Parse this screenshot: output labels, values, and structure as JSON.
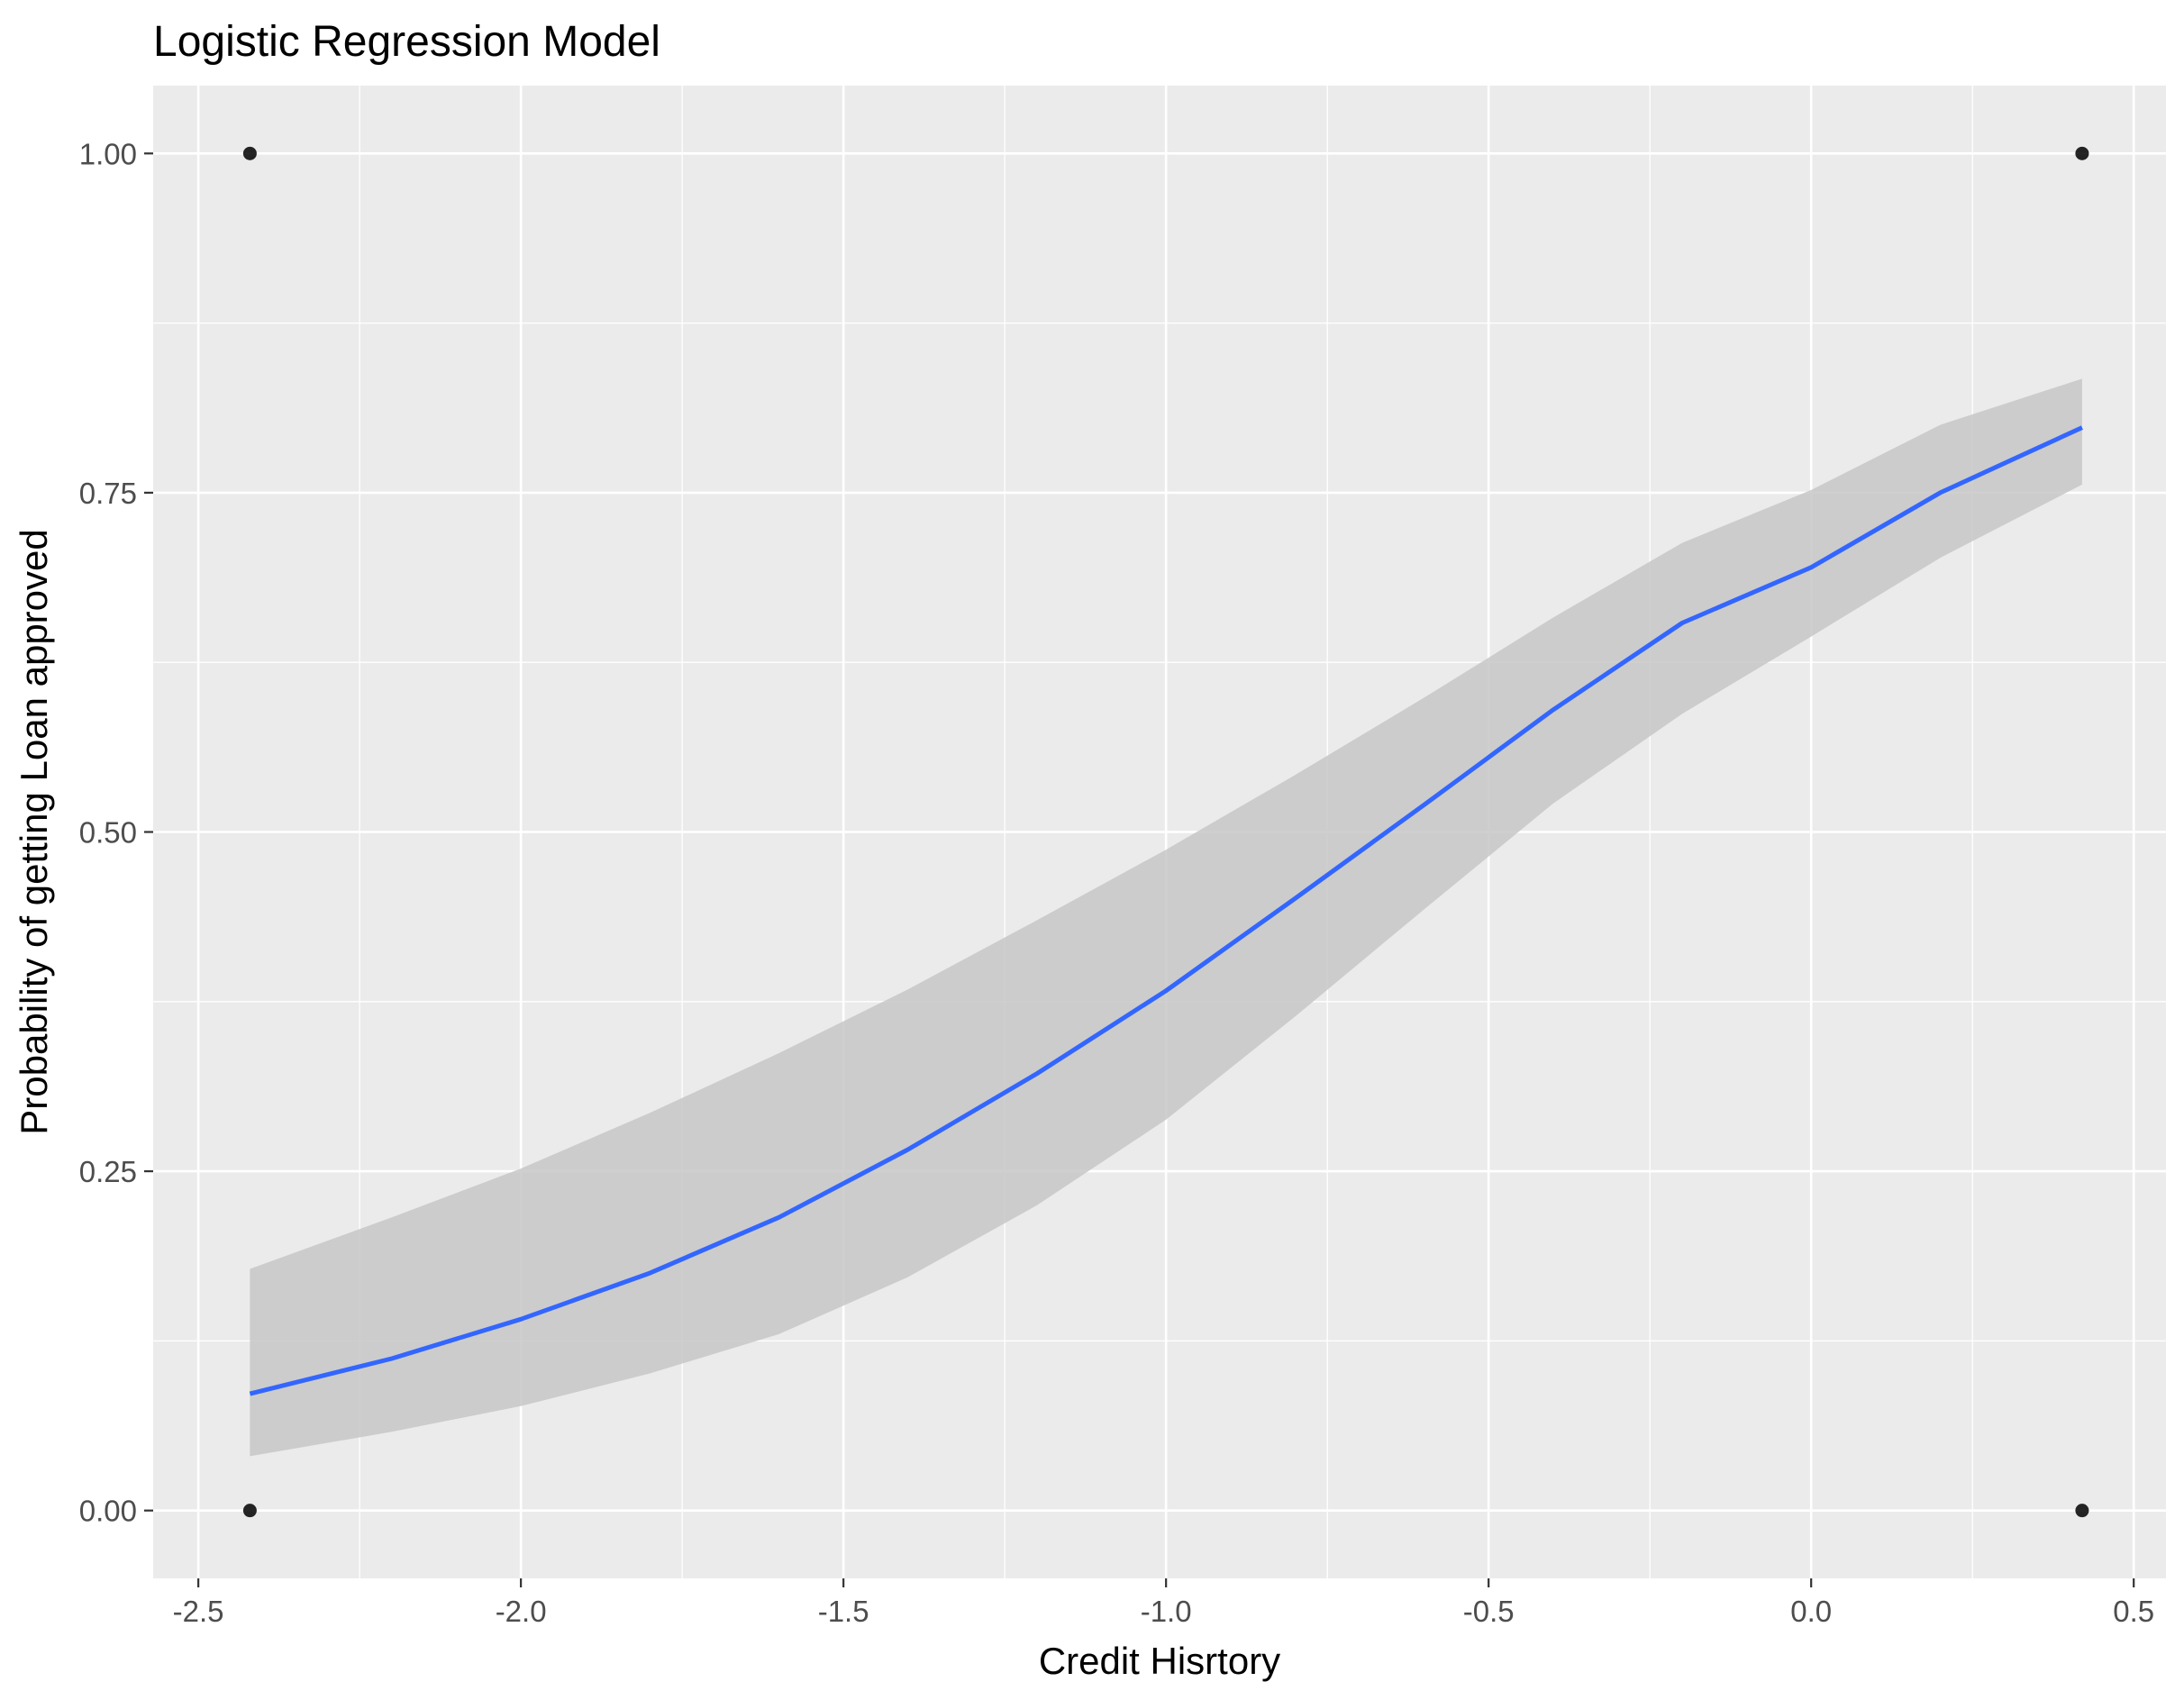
{
  "chart_data": {
    "type": "scatter",
    "title": "Logistic Regression Model",
    "xlabel": "Credit Hisrtory",
    "ylabel": "Probability of getting Loan approved",
    "xlim": [
      -2.57,
      0.55
    ],
    "ylim": [
      -0.05,
      1.05
    ],
    "x_ticks": [
      {
        "value": -2.5,
        "label": "-2.5"
      },
      {
        "value": -2.0,
        "label": "-2.0"
      },
      {
        "value": -1.5,
        "label": "-1.5"
      },
      {
        "value": -1.0,
        "label": "-1.0"
      },
      {
        "value": -0.5,
        "label": "-0.5"
      },
      {
        "value": 0.0,
        "label": "0.0"
      },
      {
        "value": 0.5,
        "label": "0.5"
      }
    ],
    "y_ticks": [
      {
        "value": 0.0,
        "label": "0.00"
      },
      {
        "value": 0.25,
        "label": "0.25"
      },
      {
        "value": 0.5,
        "label": "0.50"
      },
      {
        "value": 0.75,
        "label": "0.75"
      },
      {
        "value": 1.0,
        "label": "1.00"
      }
    ],
    "grid": true,
    "points": [
      {
        "x": -2.42,
        "y": 1.0
      },
      {
        "x": -2.42,
        "y": 0.0
      },
      {
        "x": 0.42,
        "y": 1.0
      },
      {
        "x": 0.42,
        "y": 0.0
      }
    ],
    "fit_line": {
      "x": [
        -2.42,
        -2.2,
        -2.0,
        -1.8,
        -1.6,
        -1.4,
        -1.2,
        -1.0,
        -0.8,
        -0.6,
        -0.4,
        -0.2,
        0.0,
        0.2,
        0.42
      ],
      "y": [
        0.086,
        0.112,
        0.141,
        0.175,
        0.216,
        0.266,
        0.322,
        0.383,
        0.451,
        0.52,
        0.59,
        0.654,
        0.695,
        0.75,
        0.798
      ],
      "lower": [
        0.04,
        0.058,
        0.077,
        0.101,
        0.13,
        0.172,
        0.225,
        0.288,
        0.364,
        0.443,
        0.521,
        0.587,
        0.644,
        0.702,
        0.756
      ],
      "upper": [
        0.178,
        0.216,
        0.252,
        0.293,
        0.337,
        0.384,
        0.435,
        0.487,
        0.542,
        0.599,
        0.658,
        0.713,
        0.752,
        0.8,
        0.834
      ]
    },
    "colors": {
      "panel": "#ebebeb",
      "grid": "#ffffff",
      "line": "#3366ff",
      "ribbon": "#c7c7c7",
      "points": "#000000",
      "tick_text": "#4d4d4d"
    }
  }
}
